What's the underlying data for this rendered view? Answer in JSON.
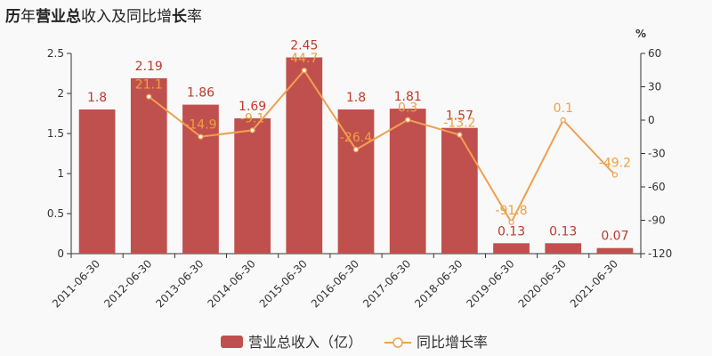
{
  "title_parts": [
    {
      "text": "历",
      "bold": true
    },
    {
      "text": "年",
      "bold": false
    },
    {
      "text": "营业总",
      "bold": true
    },
    {
      "text": "收入及同比增",
      "bold": false
    },
    {
      "text": "长",
      "bold": true
    },
    {
      "text": "率",
      "bold": false
    }
  ],
  "chart_data": {
    "type": "bar",
    "title": "历年营业总收入及同比增长率",
    "categories": [
      "2011-06-30",
      "2012-06-30",
      "2013-06-30",
      "2014-06-30",
      "2015-06-30",
      "2016-06-30",
      "2017-06-30",
      "2018-06-30",
      "2019-06-30",
      "2020-06-30",
      "2021-06-30"
    ],
    "series": [
      {
        "name": "营业总收入（亿）",
        "type": "bar",
        "axis": "left",
        "color": "#c0504d",
        "values": [
          1.8,
          2.19,
          1.86,
          1.69,
          2.45,
          1.8,
          1.81,
          1.57,
          0.13,
          0.13,
          0.07
        ],
        "labels": [
          "1.8",
          "2.19",
          "1.86",
          "1.69",
          "2.45",
          "1.8",
          "1.81",
          "1.57",
          "0.13",
          "0.13",
          "0.07"
        ]
      },
      {
        "name": "同比增长率",
        "type": "line",
        "axis": "right",
        "color": "#f0a050",
        "values": [
          null,
          21.1,
          -14.9,
          -9.1,
          44.7,
          -26.4,
          0.3,
          -13.2,
          -91.8,
          0.1,
          -49.2
        ],
        "labels": [
          null,
          "21.1",
          "-14.9",
          "-9.1",
          "44.7",
          "-26.4",
          "0.3",
          "-13.2",
          "-91.8",
          "0.1",
          "-49.2"
        ]
      }
    ],
    "y_left": {
      "ylim": [
        0,
        2.5
      ],
      "ticks": [
        "0",
        "0.5",
        "1",
        "1.5",
        "2",
        "2.5"
      ],
      "tick_values": [
        0,
        0.5,
        1,
        1.5,
        2,
        2.5
      ]
    },
    "y_right": {
      "label": "%",
      "ylim": [
        -120,
        60
      ],
      "ticks": [
        "-120",
        "-90",
        "-60",
        "-30",
        "0",
        "30",
        "60"
      ],
      "tick_values": [
        -120,
        -90,
        -60,
        -30,
        0,
        30,
        60
      ]
    },
    "legend_position": "bottom-center",
    "grid": false
  }
}
